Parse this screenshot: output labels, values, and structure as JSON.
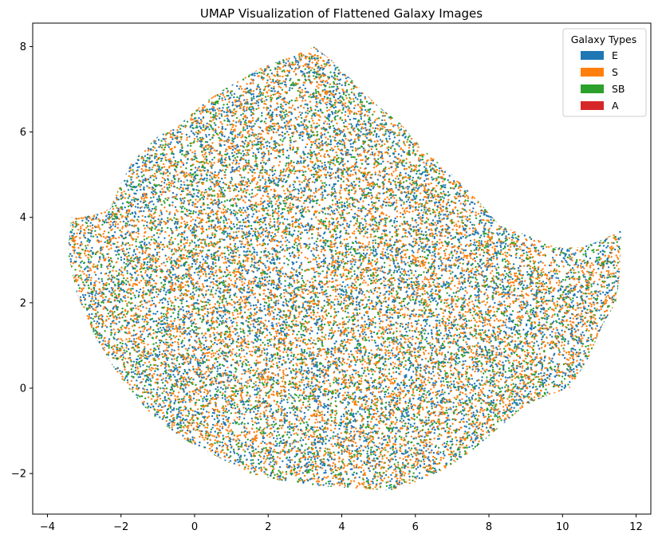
{
  "chart_data": {
    "type": "scatter",
    "title": "UMAP Visualization of Flattened Galaxy Images",
    "xlabel": "",
    "ylabel": "",
    "xlim": [
      -4.4,
      12.4
    ],
    "ylim": [
      -2.95,
      8.55
    ],
    "x_ticks": [
      -4,
      -2,
      0,
      2,
      4,
      6,
      8,
      10,
      12
    ],
    "y_ticks": [
      -2,
      0,
      2,
      4,
      6,
      8
    ],
    "x_tick_labels": [
      "−4",
      "−2",
      "0",
      "2",
      "4",
      "6",
      "8",
      "10",
      "12"
    ],
    "y_tick_labels": [
      "−2",
      "0",
      "2",
      "4",
      "6",
      "8"
    ],
    "grid": false,
    "legend": {
      "title": "Galaxy Types",
      "placement": "top-right",
      "entries": [
        {
          "label": "E",
          "color": "#1f77b4"
        },
        {
          "label": "S",
          "color": "#ff7f0e"
        },
        {
          "label": "SB",
          "color": "#2ca02c"
        },
        {
          "label": "A",
          "color": "#d62728"
        }
      ]
    },
    "series": [
      {
        "name": "E",
        "color": "#1f77b4"
      },
      {
        "name": "S",
        "color": "#ff7f0e"
      },
      {
        "name": "SB",
        "color": "#2ca02c"
      },
      {
        "name": "A",
        "color": "#d62728"
      }
    ],
    "cloud_outline": [
      [
        -3.45,
        3.2
      ],
      [
        -3.35,
        4.0
      ],
      [
        -2.8,
        4.05
      ],
      [
        -2.3,
        4.2
      ],
      [
        -2.0,
        4.8
      ],
      [
        -1.7,
        5.3
      ],
      [
        -1.0,
        5.9
      ],
      [
        -0.5,
        6.1
      ],
      [
        0.0,
        6.5
      ],
      [
        0.6,
        6.9
      ],
      [
        1.2,
        7.2
      ],
      [
        1.8,
        7.5
      ],
      [
        2.4,
        7.7
      ],
      [
        3.0,
        7.9
      ],
      [
        3.25,
        8.0
      ],
      [
        3.7,
        7.7
      ],
      [
        4.3,
        7.2
      ],
      [
        5.0,
        6.6
      ],
      [
        5.6,
        6.2
      ],
      [
        6.2,
        5.6
      ],
      [
        7.0,
        5.0
      ],
      [
        7.7,
        4.4
      ],
      [
        8.3,
        3.8
      ],
      [
        9.0,
        3.6
      ],
      [
        9.8,
        3.3
      ],
      [
        10.5,
        3.3
      ],
      [
        11.0,
        3.45
      ],
      [
        11.6,
        3.7
      ],
      [
        11.55,
        2.6
      ],
      [
        11.45,
        2.0
      ],
      [
        11.1,
        1.5
      ],
      [
        10.7,
        0.7
      ],
      [
        10.2,
        0.0
      ],
      [
        9.5,
        -0.2
      ],
      [
        9.0,
        -0.4
      ],
      [
        8.3,
        -0.9
      ],
      [
        7.5,
        -1.5
      ],
      [
        6.8,
        -1.9
      ],
      [
        6.0,
        -2.2
      ],
      [
        5.3,
        -2.4
      ],
      [
        4.5,
        -2.35
      ],
      [
        3.5,
        -2.3
      ],
      [
        2.5,
        -2.2
      ],
      [
        1.5,
        -2.0
      ],
      [
        0.6,
        -1.6
      ],
      [
        -0.3,
        -1.2
      ],
      [
        -1.2,
        -0.6
      ],
      [
        -2.0,
        0.2
      ],
      [
        -2.7,
        1.2
      ],
      [
        -3.2,
        2.2
      ],
      [
        -3.45,
        3.2
      ]
    ],
    "sparse_patches": [
      [
        2.9,
        5.7
      ],
      [
        3.1,
        3.0
      ],
      [
        2.6,
        2.9
      ],
      [
        9.6,
        3.0
      ],
      [
        2.2,
        5.3
      ]
    ]
  }
}
